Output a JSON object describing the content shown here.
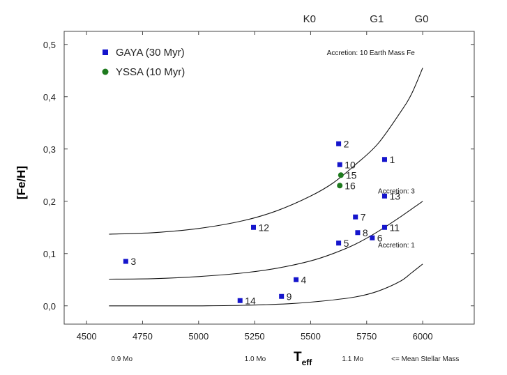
{
  "chart_data": {
    "type": "scatter",
    "xlabel": "T",
    "xlabel_sub": "eff",
    "ylabel": "[Fe/H]",
    "xlim": [
      4400,
      6230
    ],
    "ylim": [
      -0.035,
      0.525
    ],
    "x_ticks": [
      4500,
      4750,
      5000,
      5250,
      5500,
      5750,
      6000
    ],
    "y_ticks": [
      0.0,
      0.1,
      0.2,
      0.3,
      0.4,
      0.5
    ],
    "y_tick_labels": [
      "0,0",
      "0,1",
      "0,2",
      "0,3",
      "0,4",
      "0,5"
    ],
    "spectral_types": [
      {
        "label": "K0",
        "x": 5495
      },
      {
        "label": "G1",
        "x": 5795
      },
      {
        "label": "G0",
        "x": 5995
      }
    ],
    "legend": [
      {
        "label": "GAYA (30 Myr)",
        "marker": "square",
        "color": "#1515cc"
      },
      {
        "label": "YSSA (10 Myr)",
        "marker": "circle",
        "color": "#1e7a1e"
      }
    ],
    "series": [
      {
        "name": "GAYA (30 Myr)",
        "marker": "square",
        "color": "#1515cc",
        "points": [
          {
            "id": "1",
            "x": 5830,
            "y": 0.28
          },
          {
            "id": "2",
            "x": 5625,
            "y": 0.31
          },
          {
            "id": "3",
            "x": 4675,
            "y": 0.085
          },
          {
            "id": "4",
            "x": 5435,
            "y": 0.05
          },
          {
            "id": "5",
            "x": 5625,
            "y": 0.12
          },
          {
            "id": "6",
            "x": 5775,
            "y": 0.13
          },
          {
            "id": "7",
            "x": 5700,
            "y": 0.17
          },
          {
            "id": "8",
            "x": 5710,
            "y": 0.14
          },
          {
            "id": "9",
            "x": 5370,
            "y": 0.018
          },
          {
            "id": "10",
            "x": 5630,
            "y": 0.27
          },
          {
            "id": "11",
            "x": 5830,
            "y": 0.15
          },
          {
            "id": "12",
            "x": 5245,
            "y": 0.15
          },
          {
            "id": "13",
            "x": 5830,
            "y": 0.21
          },
          {
            "id": "14",
            "x": 5185,
            "y": 0.01
          }
        ]
      },
      {
        "name": "YSSA (10 Myr)",
        "marker": "circle",
        "color": "#1e7a1e",
        "points": [
          {
            "id": "15",
            "x": 5635,
            "y": 0.25
          },
          {
            "id": "16",
            "x": 5630,
            "y": 0.23
          }
        ]
      }
    ],
    "curves": [
      {
        "label": "Accretion: 10 Earth Mass Fe",
        "points": [
          [
            4600,
            0.137
          ],
          [
            4800,
            0.14
          ],
          [
            5000,
            0.148
          ],
          [
            5200,
            0.163
          ],
          [
            5350,
            0.182
          ],
          [
            5500,
            0.21
          ],
          [
            5600,
            0.235
          ],
          [
            5700,
            0.27
          ],
          [
            5800,
            0.31
          ],
          [
            5900,
            0.37
          ],
          [
            5950,
            0.405
          ],
          [
            6000,
            0.455
          ]
        ]
      },
      {
        "label": "Accretion: 3",
        "points": [
          [
            4600,
            0.051
          ],
          [
            4800,
            0.052
          ],
          [
            5000,
            0.056
          ],
          [
            5200,
            0.063
          ],
          [
            5350,
            0.072
          ],
          [
            5500,
            0.086
          ],
          [
            5600,
            0.1
          ],
          [
            5700,
            0.118
          ],
          [
            5800,
            0.142
          ],
          [
            5900,
            0.17
          ],
          [
            6000,
            0.2
          ]
        ]
      },
      {
        "label": "Accretion: 1",
        "points": [
          [
            4600,
            0.0
          ],
          [
            4800,
            0.0
          ],
          [
            5000,
            0.0
          ],
          [
            5200,
            0.001
          ],
          [
            5400,
            0.004
          ],
          [
            5550,
            0.009
          ],
          [
            5700,
            0.017
          ],
          [
            5800,
            0.028
          ],
          [
            5900,
            0.047
          ],
          [
            5950,
            0.063
          ],
          [
            6000,
            0.08
          ]
        ]
      }
    ],
    "mass_labels": [
      {
        "label": "0.9 Mo",
        "x": 4610
      },
      {
        "label": "1.0 Mo",
        "x": 5205
      },
      {
        "label": "1.1 Mo",
        "x": 5640
      },
      {
        "label": "<= Mean Stellar Mass",
        "x": 5860
      }
    ]
  }
}
